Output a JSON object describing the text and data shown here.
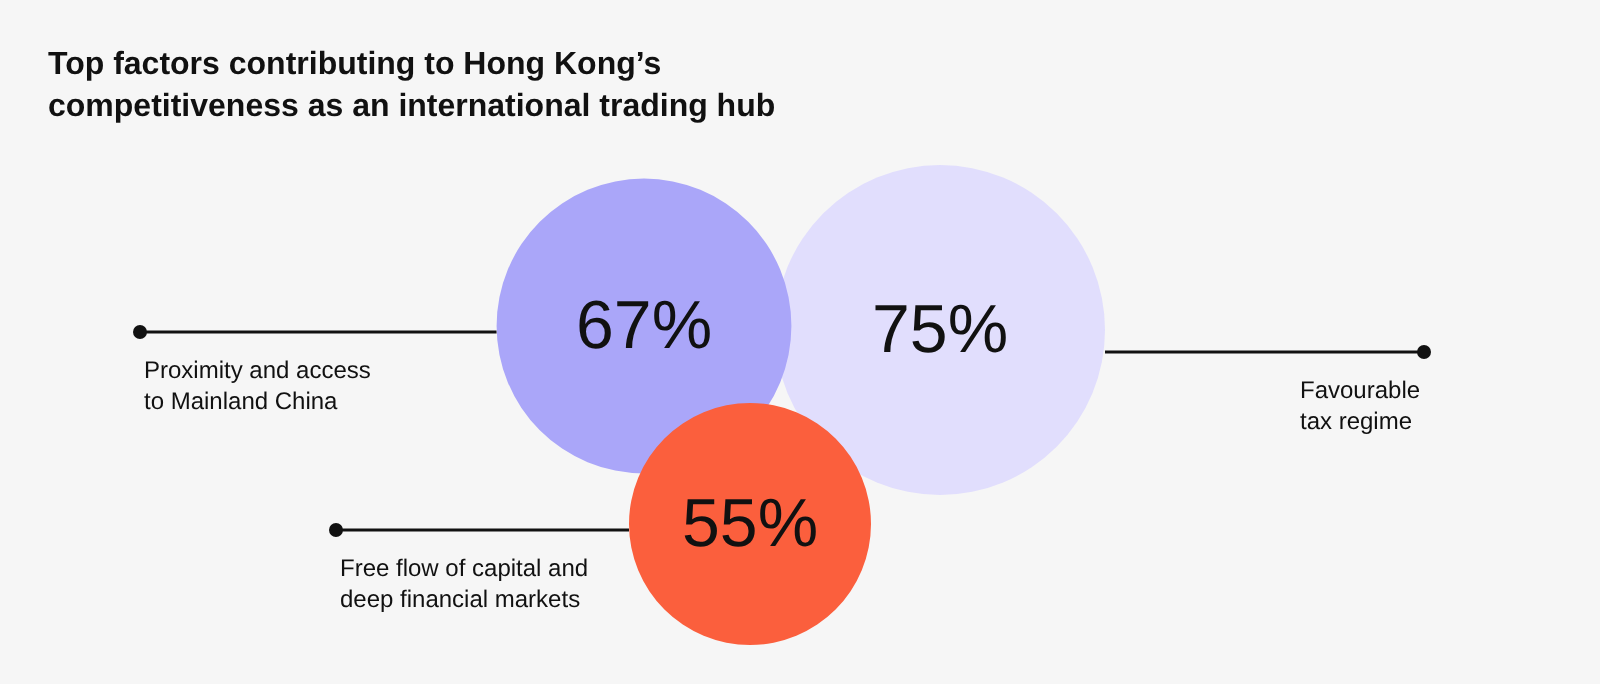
{
  "chart_data": {
    "type": "other",
    "title": "Top factors contributing to Hong Kong’s competitiveness as an international trading hub",
    "categories": [
      "Proximity and access to Mainland China",
      "Favourable tax regime",
      "Free flow of capital and deep financial markets"
    ],
    "values": [
      67,
      75,
      55
    ],
    "colors": [
      "#aaa6f9",
      "#e1defd",
      "#fb5f3d"
    ],
    "value_labels": [
      "67%",
      "75%",
      "55%"
    ]
  }
}
